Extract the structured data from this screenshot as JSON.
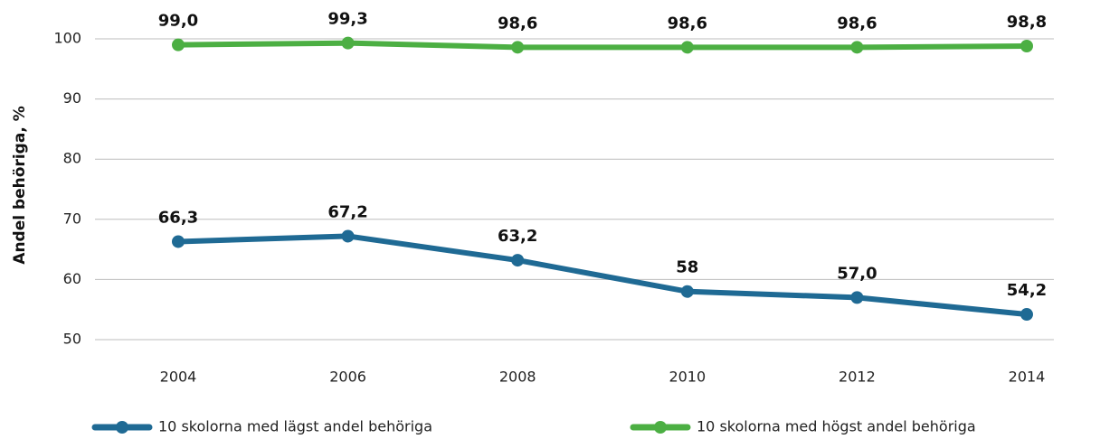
{
  "chart_data": {
    "type": "line",
    "y_label": "Andel behöriga, %",
    "categories": [
      "2004",
      "2006",
      "2008",
      "2010",
      "2012",
      "2014"
    ],
    "series": [
      {
        "name": "10 skolorna med lägst andel behöriga",
        "color": "#1f6a94",
        "values": [
          66.3,
          67.2,
          63.2,
          58,
          57.0,
          54.2
        ],
        "value_labels": [
          "66,3",
          "67,2",
          "63,2",
          "58",
          "57,0",
          "54,2"
        ]
      },
      {
        "name": "10 skolorna med högst andel behöriga",
        "color": "#4caf43",
        "values": [
          99.0,
          99.3,
          98.6,
          98.6,
          98.6,
          98.8
        ],
        "value_labels": [
          "99,0",
          "99,3",
          "98,6",
          "98,6",
          "98,6",
          "98,8"
        ]
      }
    ],
    "ylim": [
      50,
      100
    ],
    "yticks": [
      50,
      60,
      70,
      80,
      90,
      100
    ],
    "grid": true
  }
}
